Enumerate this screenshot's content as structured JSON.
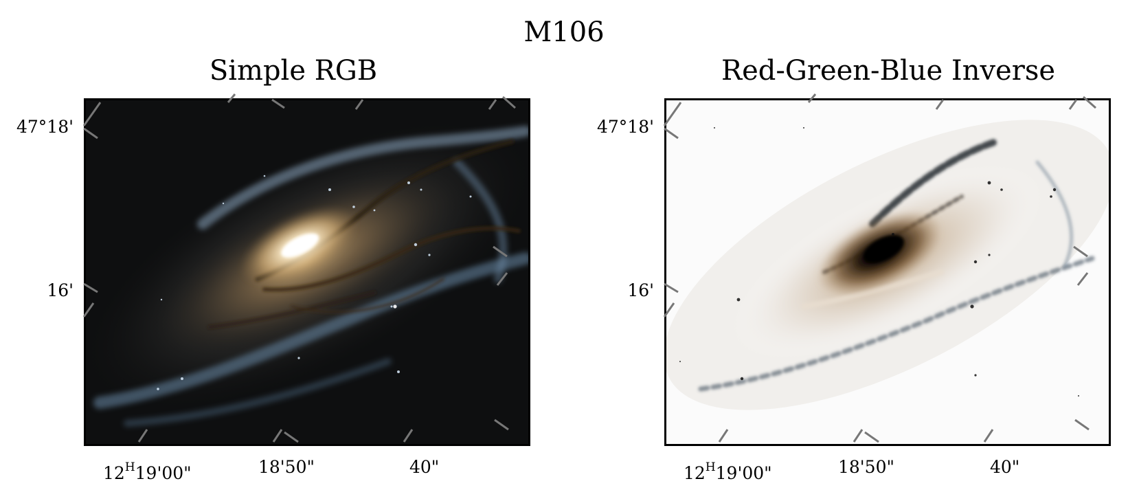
{
  "figure": {
    "title": "M106"
  },
  "panels": [
    {
      "title": "Simple RGB",
      "image": "galaxy-color-image",
      "y_ticks": [
        "47°18'",
        "16'"
      ],
      "x_ticks": {
        "first_hours": "12",
        "first_unit": "H",
        "first_rest": "19'00\"",
        "second": "18'50\"",
        "third": "40\""
      }
    },
    {
      "title": "Red-Green-Blue Inverse",
      "image": "galaxy-inverted-color-image",
      "y_ticks": [
        "47°18'",
        "16'"
      ],
      "x_ticks": {
        "first_hours": "12",
        "first_unit": "H",
        "first_rest": "19'00\"",
        "second": "18'50\"",
        "third": "40\""
      }
    }
  ],
  "colors": {
    "tick": "#777777",
    "frame": "#000000",
    "sky_dark": "#0d0d0d",
    "core_glow": "#f4e2b8",
    "dust_lane": "#3a2a18",
    "arm_blue": "#7f9bb8"
  }
}
